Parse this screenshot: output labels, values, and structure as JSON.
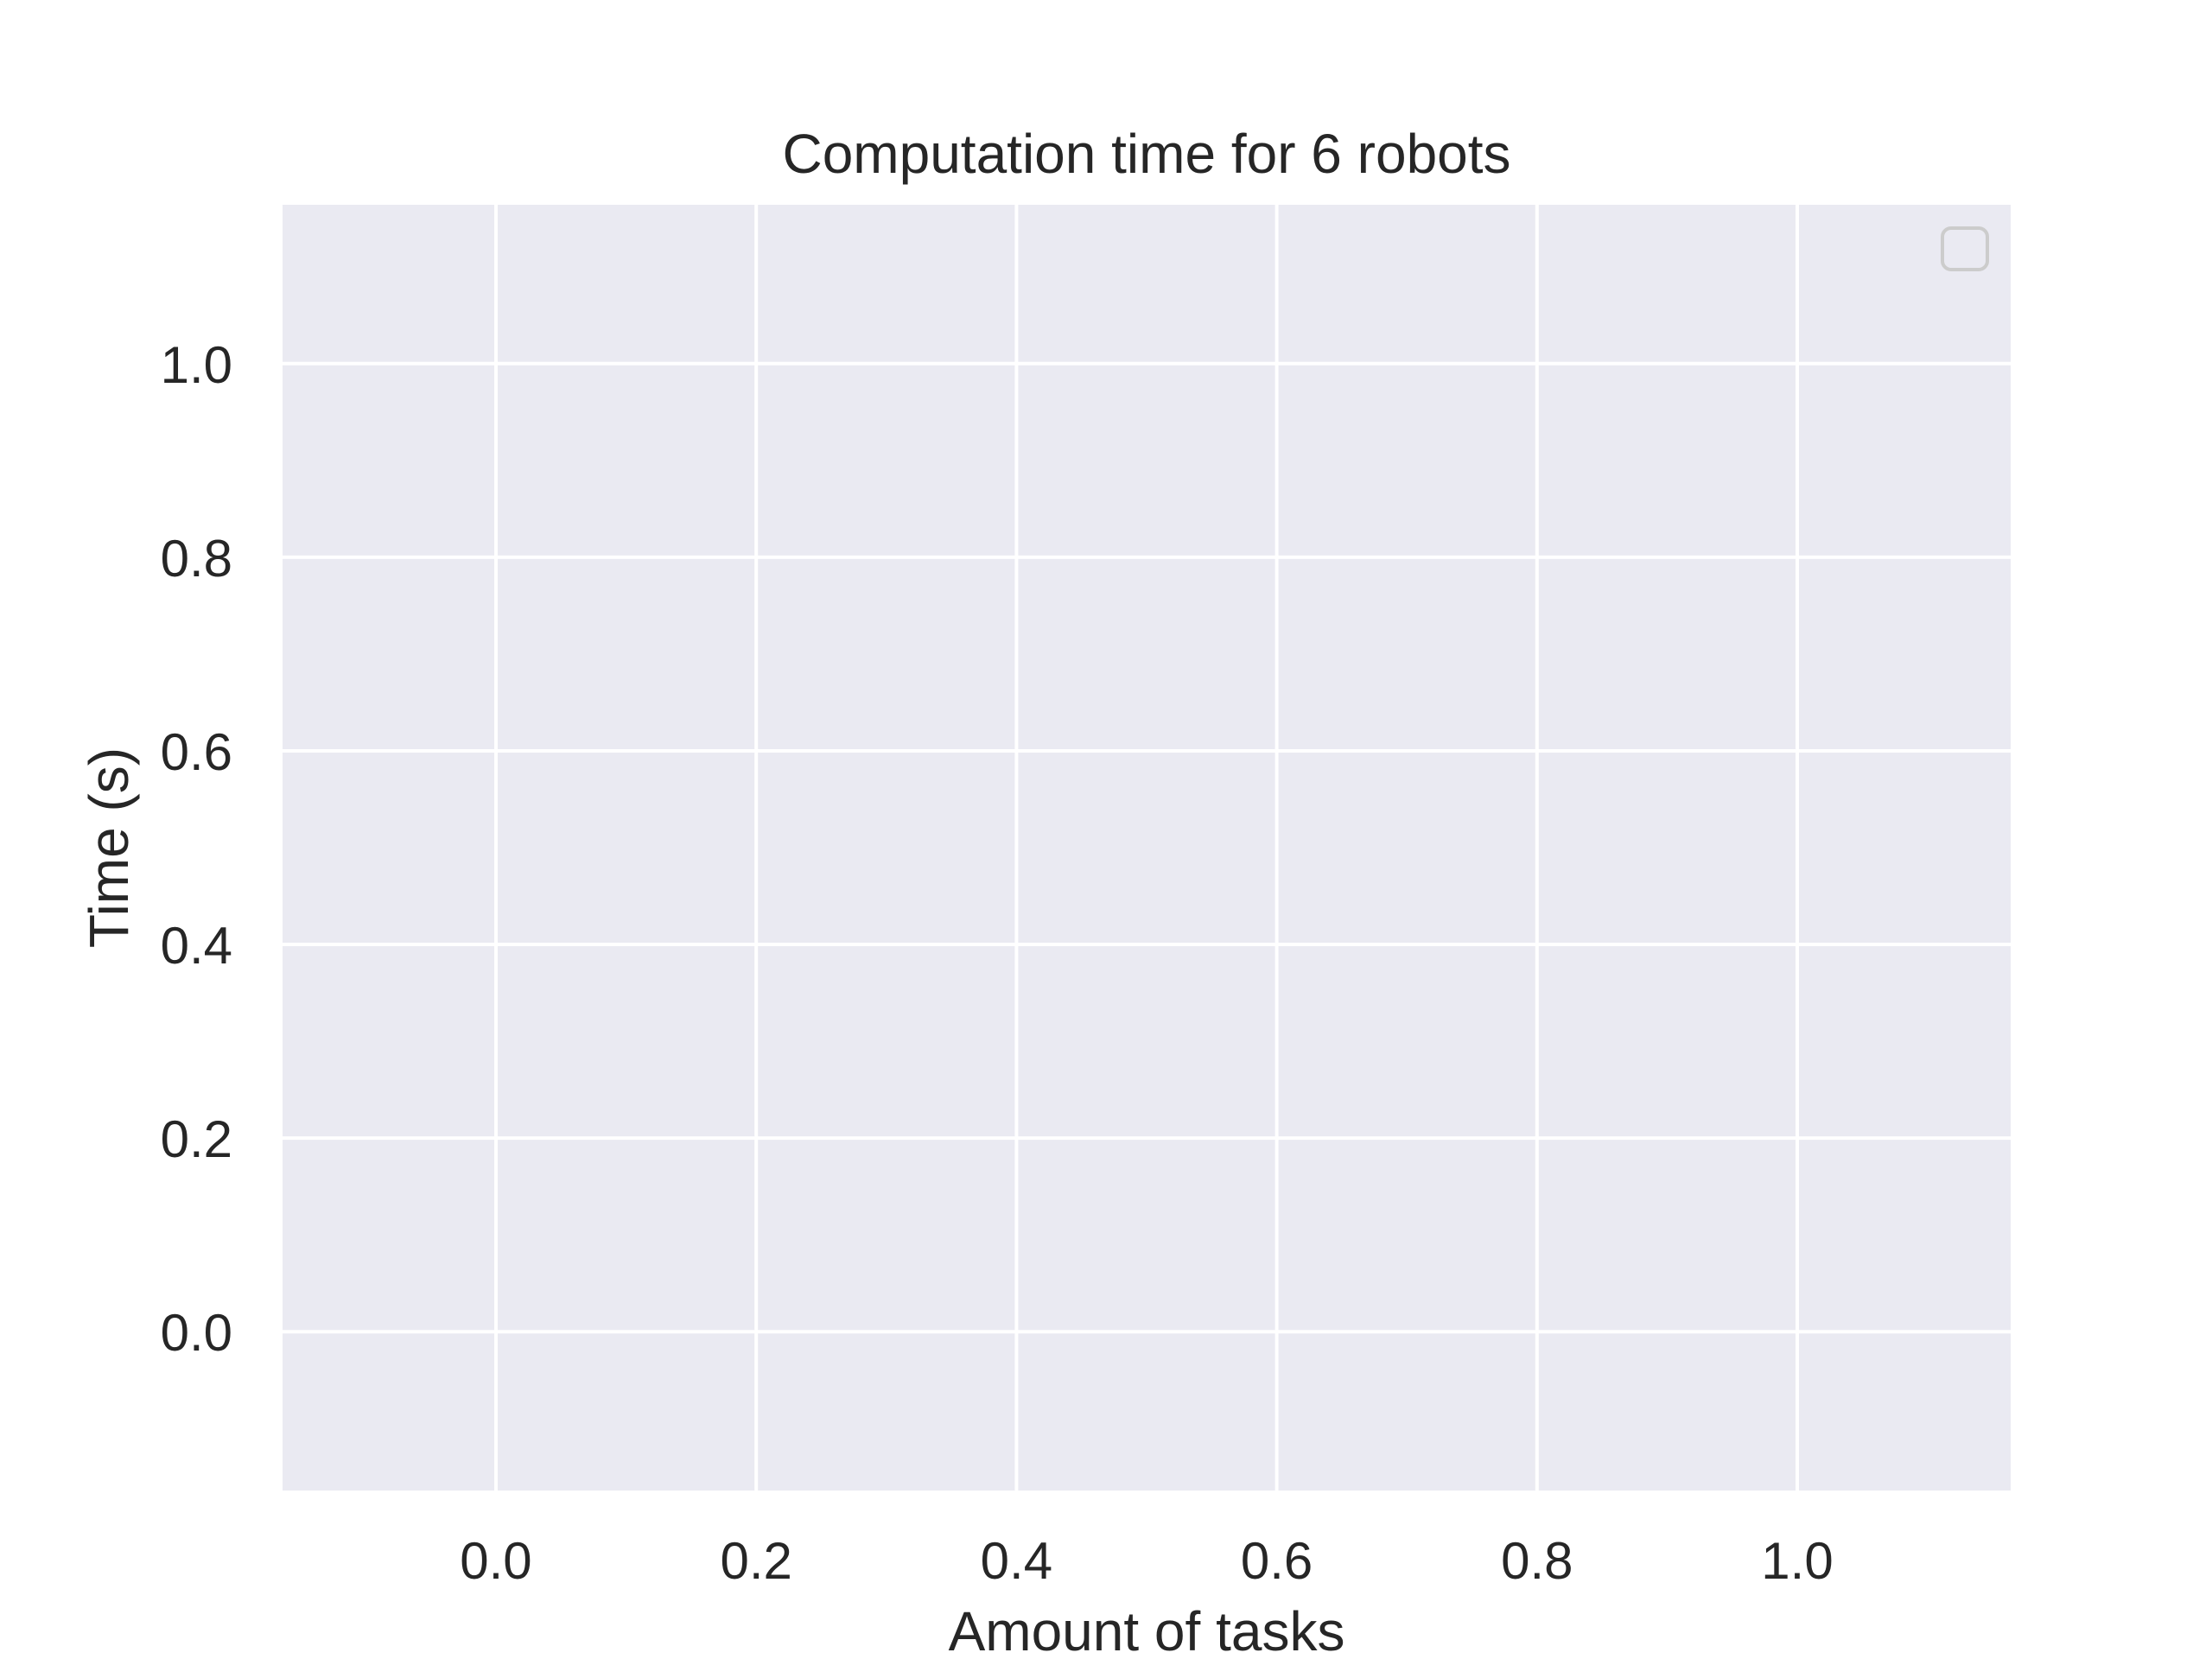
{
  "chart_data": {
    "type": "line",
    "title": "Computation time for 6 robots",
    "xlabel": "Amount of tasks",
    "ylabel": "Time (s)",
    "xlim": [
      -0.164,
      1.164
    ],
    "ylim": [
      -0.164,
      1.164
    ],
    "xticks": [
      0.0,
      0.2,
      0.4,
      0.6,
      0.8,
      1.0
    ],
    "xtick_labels": [
      "0.0",
      "0.2",
      "0.4",
      "0.6",
      "0.8",
      "1.0"
    ],
    "yticks": [
      0.0,
      0.2,
      0.4,
      0.6,
      0.8,
      1.0
    ],
    "ytick_labels": [
      "0.0",
      "0.2",
      "0.4",
      "0.6",
      "0.8",
      "1.0"
    ],
    "grid": true,
    "legend": "top-right",
    "series": []
  },
  "colors": {
    "plot_background": "#eaeaf2",
    "grid": "#ffffff",
    "text": "#262626",
    "legend_border": "#cccccc"
  }
}
